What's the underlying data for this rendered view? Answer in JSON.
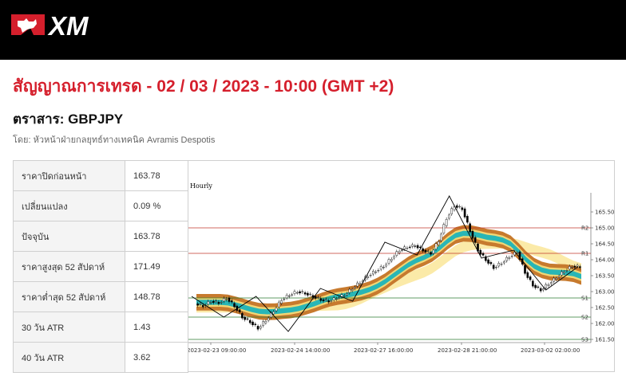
{
  "brand": {
    "logo_text": "XM"
  },
  "header": {
    "title": "สัญญาณการเทรด - 02 / 03 / 2023 - 10:00 (GMT +2)",
    "instrument": "ตราสาร: GBPJPY",
    "author": "โดย: หัวหน้าฝ่ายกลยุทธ์ทางเทคนิค Avramis Despotis"
  },
  "stats": [
    {
      "label": "ราคาปิดก่อนหน้า",
      "value": "163.78"
    },
    {
      "label": "เปลี่ยนแปลง",
      "value": "0.09 %"
    },
    {
      "label": "ปัจจุบัน",
      "value": "163.78"
    },
    {
      "label": "ราคาสูงสุด 52 สัปดาห์",
      "value": "171.49"
    },
    {
      "label": "ราคาต่ำสุด 52 สัปดาห์",
      "value": "148.78"
    },
    {
      "label": "30 วัน ATR",
      "value": "1.43"
    },
    {
      "label": "40 วัน ATR",
      "value": "3.62"
    }
  ],
  "colors": {
    "brand_red": "#d51f2c",
    "resistance_line": "#c0392b",
    "support_line": "#2e7d32",
    "band_outer": "#c77a2e",
    "band_middle": "#f2d675",
    "band_inner": "#29b6b6",
    "band_slow": "#fbe9a3"
  },
  "chart_data": {
    "type": "candlestick",
    "timeframe_label": "Hourly",
    "y_ticks": [
      "161.50",
      "162.00",
      "162.50",
      "163.00",
      "163.50",
      "164.00",
      "164.50",
      "165.00",
      "165.50"
    ],
    "ylim": [
      161.4,
      166.1
    ],
    "x_ticks": [
      "2023-02-23 09:00:00",
      "2023-02-24 14:00:00",
      "2023-02-27 16:00:00",
      "2023-02-28 21:00:00",
      "2023-03-02 02:00:00"
    ],
    "levels": [
      {
        "name": "R2",
        "value": 165.0,
        "kind": "resistance"
      },
      {
        "name": "R1",
        "value": 164.2,
        "kind": "resistance"
      },
      {
        "name": "S1",
        "value": 162.8,
        "kind": "support"
      },
      {
        "name": "S2",
        "value": 162.2,
        "kind": "support"
      },
      {
        "name": "S3",
        "value": 161.5,
        "kind": "support"
      }
    ],
    "close_path": [
      162.62,
      162.55,
      162.7,
      162.65,
      162.8,
      162.55,
      162.2,
      162.05,
      161.85,
      162.1,
      162.4,
      162.75,
      162.9,
      163.0,
      162.95,
      162.85,
      162.75,
      162.7,
      162.8,
      162.9,
      163.1,
      163.3,
      163.5,
      163.65,
      163.8,
      164.05,
      164.3,
      164.4,
      164.45,
      164.3,
      164.2,
      164.6,
      165.3,
      165.7,
      165.6,
      164.9,
      164.3,
      164.0,
      163.75,
      163.9,
      164.1,
      164.25,
      163.6,
      163.2,
      163.05,
      163.25,
      163.45,
      163.65,
      163.8,
      163.78
    ],
    "zigzag": [
      162.85,
      162.2,
      162.85,
      161.75,
      163.1,
      162.7,
      164.55,
      164.15,
      166.0,
      164.05,
      164.3,
      163.05,
      163.78
    ]
  }
}
